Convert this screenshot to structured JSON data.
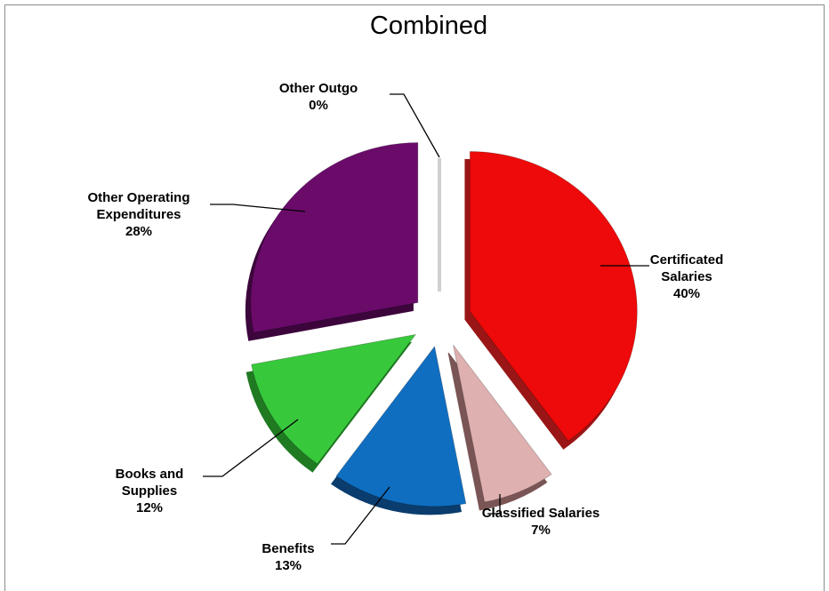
{
  "chart_data": {
    "type": "pie",
    "title": "Combined",
    "slices": [
      {
        "name": "Certificated Salaries",
        "label_lines": [
          "Certificated",
          "Salaries"
        ],
        "value": 40,
        "pct_label": "40%",
        "color": "#ee0a0a",
        "side": "#9a1616"
      },
      {
        "name": "Classified Salaries",
        "label_lines": [
          "Classified Salaries"
        ],
        "value": 7,
        "pct_label": "7%",
        "color": "#dfb0b0",
        "side": "#7a5555"
      },
      {
        "name": "Benefits",
        "label_lines": [
          "Benefits"
        ],
        "value": 13,
        "pct_label": "13%",
        "color": "#0f6ec0",
        "side": "#0a3d6e"
      },
      {
        "name": "Books and Supplies",
        "label_lines": [
          "Books and",
          "Supplies"
        ],
        "value": 12,
        "pct_label": "12%",
        "color": "#38c83c",
        "side": "#1f7a22"
      },
      {
        "name": "Other Operating Expenditures",
        "label_lines": [
          "Other Operating",
          "Expenditures"
        ],
        "value": 28,
        "pct_label": "28%",
        "color": "#6a0b6a",
        "side": "#3c063c"
      },
      {
        "name": "Other Outgo",
        "label_lines": [
          "Other Outgo"
        ],
        "value": 0,
        "pct_label": "0%",
        "color": "#d0d0d0",
        "side": "#999999"
      }
    ],
    "exploded": true,
    "style": "3d",
    "legend": "none"
  }
}
